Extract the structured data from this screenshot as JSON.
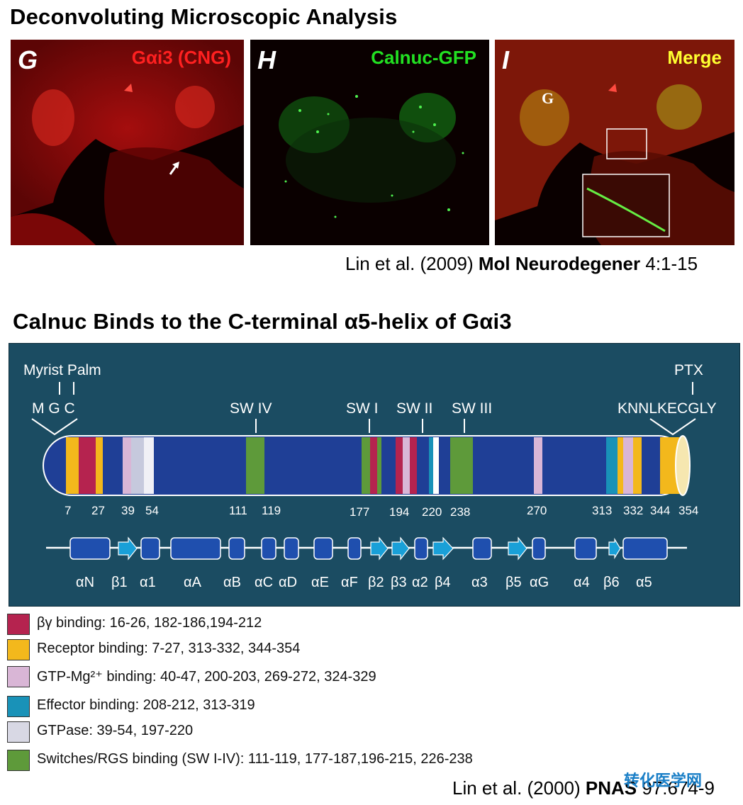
{
  "top": {
    "title": "Deconvoluting Microscopic Analysis",
    "panels": [
      {
        "letter": "G",
        "label": "Gαi3 (CNG)",
        "color": "#ff2020"
      },
      {
        "letter": "H",
        "label": "Calnuc-GFP",
        "color": "#22e022"
      },
      {
        "letter": "I",
        "label": "Merge",
        "color": "#ffff30",
        "inset_letter": "G"
      }
    ],
    "citation_authors": "Lin et al. (2009) ",
    "citation_journal": "Mol Neurodegener",
    "citation_pages": " 4:1-15"
  },
  "bottom": {
    "title": "Calnuc Binds to the C-terminal  α5-helix of  Gαi3",
    "diagram": {
      "myrist_palm": "Myrist Palm",
      "mgc": "M G C",
      "ptx": "PTX",
      "cterm_seq": "KNNLKECGLY",
      "switch_labels": [
        "SW IV",
        "SW I",
        "SW II",
        "SW III"
      ],
      "positions": [
        "7",
        "27",
        "39",
        "54",
        "111",
        "119",
        "177",
        "194",
        "220",
        "238",
        "270",
        "313",
        "332",
        "344",
        "354"
      ],
      "structure_labels": [
        "αN",
        "β1",
        "α1",
        "αA",
        "αB",
        "αC",
        "αD",
        "αE",
        "αF",
        "β2",
        "β3",
        "α2",
        "β4",
        "α3",
        "β5",
        "αG",
        "α4",
        "β6",
        "α5"
      ]
    },
    "legend": [
      {
        "label": "βγ binding: 16-26, 182-186,194-212",
        "color": "#b5234f"
      },
      {
        "label": "Receptor binding: 7-27, 313-332, 344-354",
        "color": "#f3b81c"
      },
      {
        "label": "GTP-Mg²⁺ binding: 40-47, 200-203, 269-272, 324-329",
        "color": "#d9b6d6"
      },
      {
        "label": "Effector binding: 208-212, 313-319",
        "color": "#1992b8"
      },
      {
        "label": "GTPase: 39-54, 197-220",
        "color": "#d8d8e4"
      },
      {
        "label": "Switches/RGS binding (SW I-IV): 111-119, 177-187,196-215, 226-238",
        "color": "#5e9a3a"
      }
    ],
    "citation_authors": "Lin et al. (2000) ",
    "citation_journal": "PNAS",
    "citation_pages": " 97:674-9"
  },
  "watermark": "转化医学网"
}
